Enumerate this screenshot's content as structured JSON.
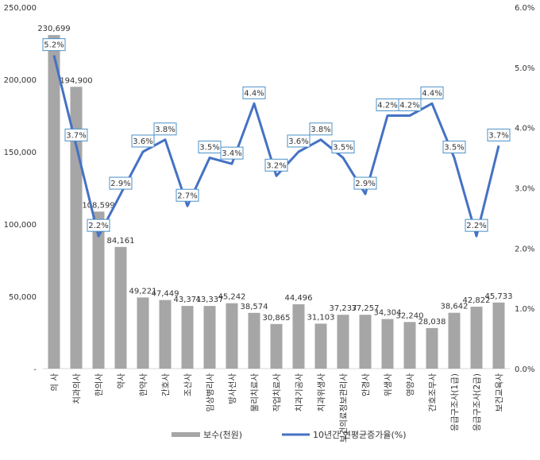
{
  "chart_data": {
    "type": "bar",
    "categories": [
      "의 사",
      "치과의사",
      "한의사",
      "약사",
      "한약사",
      "간호사",
      "조산사",
      "임상병리사",
      "방사선사",
      "물리치료사",
      "작업치료사",
      "치과기공사",
      "치과위생사",
      "보건의료정보관리사",
      "안경사",
      "위생사",
      "영양사",
      "간호조무사",
      "응급구조사(1급)",
      "응급구조사(2급)",
      "보건교육사"
    ],
    "series": [
      {
        "name": "보수(천원)",
        "type": "bar",
        "axis": "left",
        "color": "#a6a6a6",
        "values": [
          230699,
          194900,
          108599,
          84161,
          49221,
          47449,
          43371,
          43337,
          45242,
          38574,
          30865,
          44496,
          31103,
          37237,
          37257,
          34304,
          32240,
          28038,
          38642,
          42822,
          45733
        ],
        "labels": [
          "230,699",
          "194,900",
          "108,599",
          "84,161",
          "49,221",
          "47,449",
          "43,371",
          "43,337",
          "45,242",
          "38,574",
          "30,865",
          "44,496",
          "31,103",
          "37,237",
          "37,257",
          "34,304",
          "32,240",
          "28,038",
          "38,642",
          "42,822",
          "45,733"
        ]
      },
      {
        "name": "10년간 연평균증가율(%)",
        "type": "line",
        "axis": "right",
        "color": "#4472c4",
        "values": [
          5.2,
          3.7,
          2.2,
          2.9,
          3.6,
          3.8,
          2.7,
          3.5,
          3.4,
          4.4,
          3.2,
          3.6,
          3.8,
          3.5,
          2.9,
          4.2,
          4.2,
          4.4,
          3.5,
          2.2,
          3.7
        ],
        "labels": [
          "5.2%",
          "3.7%",
          "2.2%",
          "2.9%",
          "3.6%",
          "3.8%",
          "2.7%",
          "3.5%",
          "3.4%",
          "4.4%",
          "3.2%",
          "3.6%",
          "3.8%",
          "3.5%",
          "2.9%",
          "4.2%",
          "4.2%",
          "4.4%",
          "3.5%",
          "2.2%",
          "3.7%"
        ]
      }
    ],
    "y_left": {
      "ylim": [
        0,
        250000
      ],
      "ticks": [
        0,
        50000,
        100000,
        150000,
        200000,
        250000
      ],
      "tick_labels": [
        "-",
        "50,000",
        "100,000",
        "150,000",
        "200,000",
        "250,000"
      ]
    },
    "y_right": {
      "ylim": [
        0,
        6
      ],
      "ticks": [
        0,
        1,
        2,
        3,
        4,
        5,
        6
      ],
      "tick_labels": [
        "0.0%",
        "1.0%",
        "2.0%",
        "3.0%",
        "4.0%",
        "5.0%",
        "6.0%"
      ]
    },
    "title": "",
    "xlabel": "",
    "grid": false,
    "legend": {
      "placement": "bottom",
      "entries": [
        "보수(천원)",
        "10년간 연평균증가율(%)"
      ]
    }
  }
}
